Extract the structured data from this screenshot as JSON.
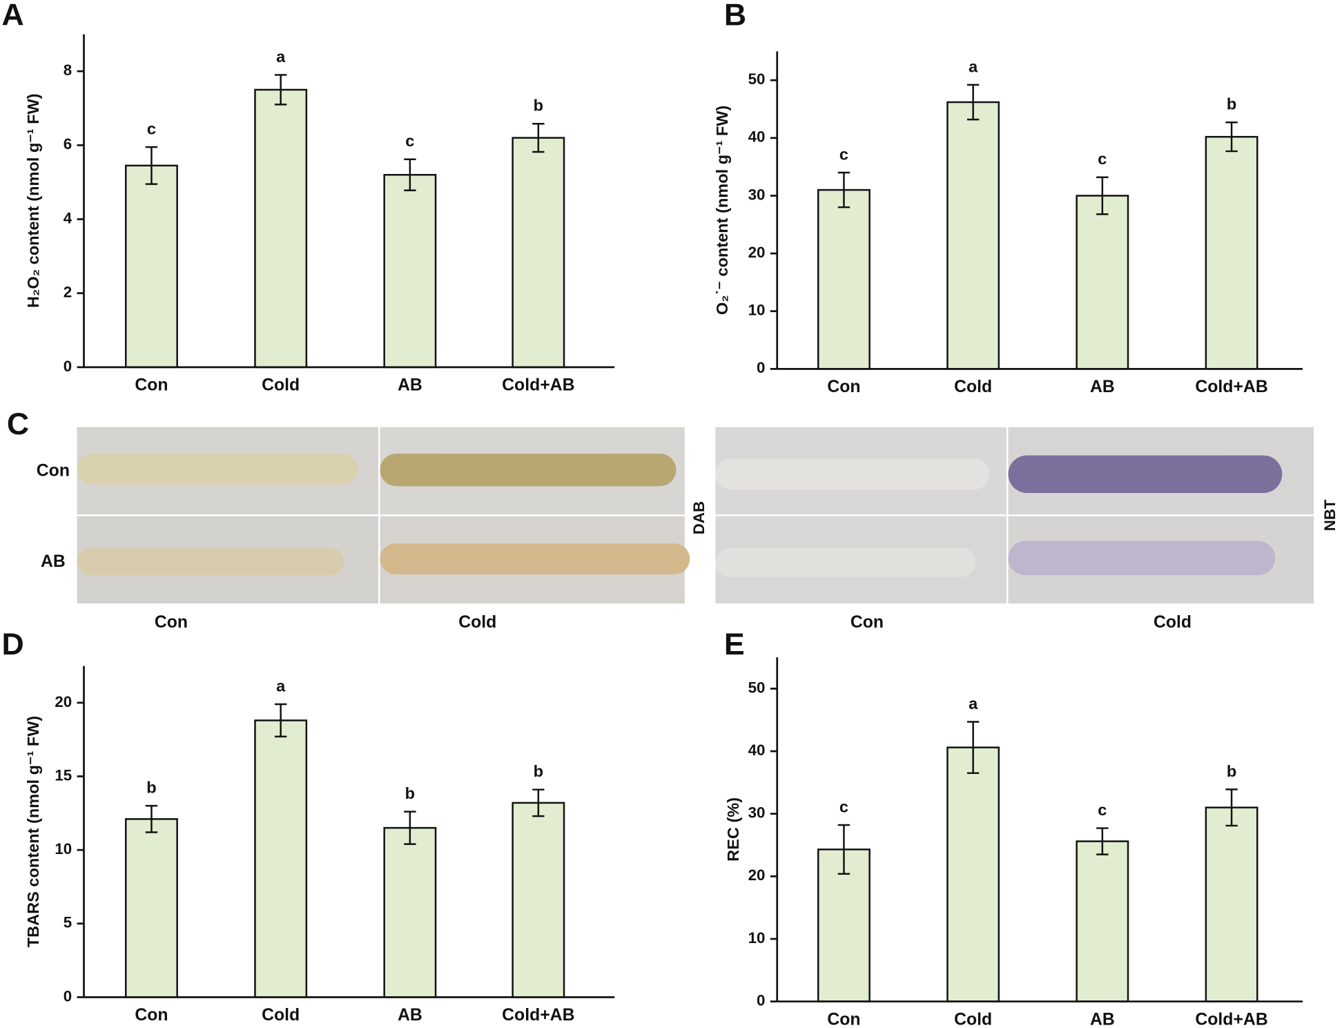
{
  "chart_data": [
    {
      "type": "bar",
      "panel_label": "A",
      "y_label": "H₂O₂ content (nmol g⁻¹ FW)",
      "categories": [
        "Con",
        "Cold",
        "AB",
        "Cold+AB"
      ],
      "values": [
        5.45,
        7.5,
        5.2,
        6.2
      ],
      "errors": [
        0.5,
        0.4,
        0.42,
        0.38
      ],
      "annotations": [
        "c",
        "a",
        "c",
        "b"
      ],
      "color": "#e2ecd0",
      "ylim": [
        0,
        9
      ],
      "yticks": [
        0,
        2,
        4,
        6,
        8
      ]
    },
    {
      "type": "bar",
      "panel_label": "B",
      "y_label": "O₂˙⁻ content (nmol g⁻¹ FW)",
      "categories": [
        "Con",
        "Cold",
        "AB",
        "Cold+AB"
      ],
      "values": [
        31,
        46.2,
        30,
        40.2
      ],
      "errors": [
        3,
        3,
        3.2,
        2.5
      ],
      "annotations": [
        "c",
        "a",
        "c",
        "b"
      ],
      "color": "#e2ecd0",
      "ylim": [
        0,
        55
      ],
      "yticks": [
        0,
        10,
        20,
        30,
        40,
        50
      ]
    },
    {
      "type": "bar",
      "panel_label": "D",
      "y_label": "TBARS content (nmol g⁻¹ FW)",
      "categories": [
        "Con",
        "Cold",
        "AB",
        "Cold+AB"
      ],
      "values": [
        12.1,
        18.8,
        11.5,
        13.2
      ],
      "errors": [
        0.9,
        1.1,
        1.1,
        0.9
      ],
      "annotations": [
        "b",
        "a",
        "b",
        "b"
      ],
      "color": "#e2ecd0",
      "ylim": [
        0,
        22.5
      ],
      "yticks": [
        0,
        5,
        10,
        15,
        20
      ]
    },
    {
      "type": "bar",
      "panel_label": "E",
      "y_label": "REC (%)",
      "categories": [
        "Con",
        "Cold",
        "AB",
        "Cold+AB"
      ],
      "values": [
        24.3,
        40.6,
        25.6,
        31
      ],
      "errors": [
        3.9,
        4.1,
        2.1,
        2.9
      ],
      "annotations": [
        "c",
        "a",
        "c",
        "b"
      ],
      "color": "#e2ecd0",
      "ylim": [
        0,
        55
      ],
      "yticks": [
        0,
        10,
        20,
        30,
        40,
        50
      ]
    }
  ],
  "panel_c": {
    "panel_label": "C",
    "row_labels": [
      "Con",
      "AB"
    ],
    "column_labels": [
      "Con",
      "Cold"
    ],
    "stain_labels": [
      "DAB",
      "NBT"
    ]
  }
}
